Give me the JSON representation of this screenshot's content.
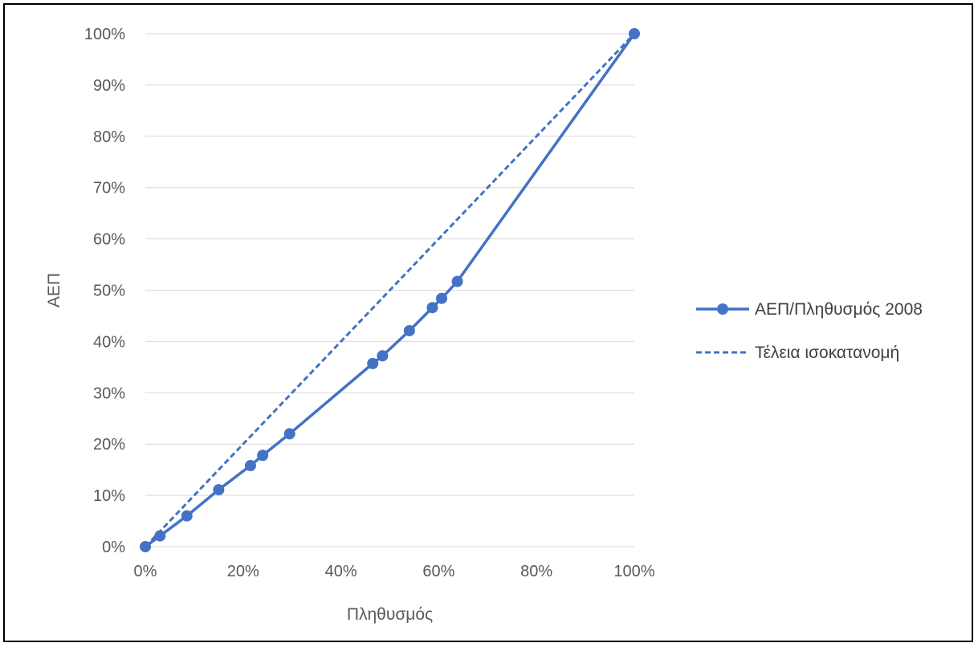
{
  "chart_data": {
    "type": "line",
    "title": "",
    "xlabel": "Πληθυσμός",
    "ylabel": "ΑΕΠ",
    "xlim": [
      0,
      1
    ],
    "ylim": [
      0,
      1
    ],
    "x_ticks": [
      "0%",
      "20%",
      "40%",
      "60%",
      "80%",
      "100%"
    ],
    "y_ticks": [
      "0%",
      "10%",
      "20%",
      "30%",
      "40%",
      "50%",
      "60%",
      "70%",
      "80%",
      "90%",
      "100%"
    ],
    "grid": "horizontal",
    "legend_position": "right",
    "series": [
      {
        "name": "ΑΕΠ/Πληθυσμός 2008",
        "style": "solid-with-markers",
        "color": "#4472C4",
        "points": [
          [
            0.0,
            0.0
          ],
          [
            0.03,
            0.021
          ],
          [
            0.085,
            0.06
          ],
          [
            0.15,
            0.111
          ],
          [
            0.215,
            0.158
          ],
          [
            0.24,
            0.178
          ],
          [
            0.295,
            0.22
          ],
          [
            0.465,
            0.357
          ],
          [
            0.485,
            0.372
          ],
          [
            0.54,
            0.421
          ],
          [
            0.587,
            0.466
          ],
          [
            0.606,
            0.484
          ],
          [
            0.638,
            0.517
          ],
          [
            1.0,
            1.0
          ]
        ]
      },
      {
        "name": "Τέλεια ισοκατανομή",
        "style": "dashed",
        "color": "#4472C4",
        "points": [
          [
            0.0,
            0.0
          ],
          [
            1.0,
            1.0
          ]
        ]
      }
    ]
  }
}
